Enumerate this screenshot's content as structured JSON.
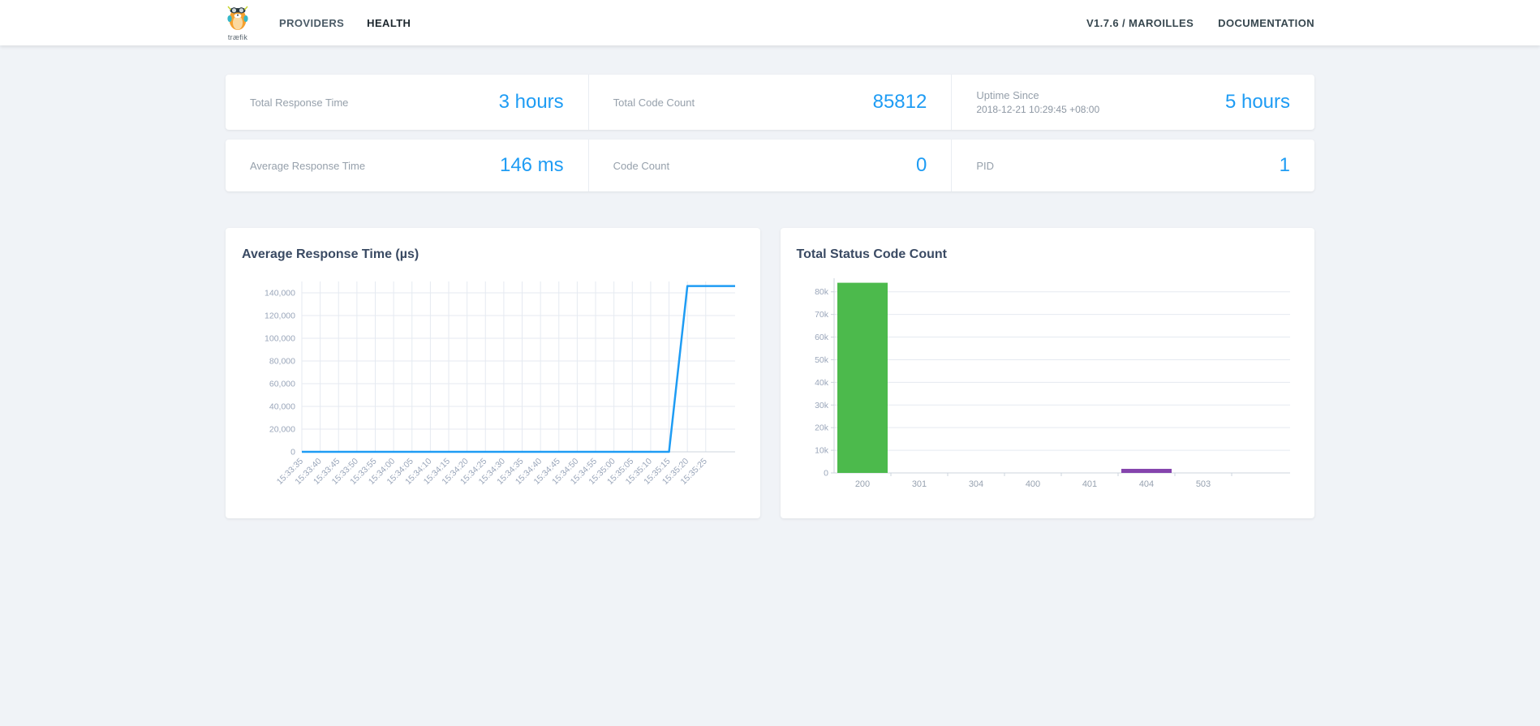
{
  "nav": {
    "logo_text": "træfik",
    "items": [
      {
        "label": "PROVIDERS",
        "active": false
      },
      {
        "label": "HEALTH",
        "active": true
      }
    ],
    "version": "V1.7.6 / MAROILLES",
    "documentation": "DOCUMENTATION"
  },
  "icons": {
    "logo": "traefik-gopher-logo"
  },
  "colors": {
    "accent_blue": "#1e9cf4",
    "line_blue": "#1e9cf4",
    "bar_green": "#4cba4c",
    "bar_purple": "#8544ad",
    "grid": "#e5eaf1"
  },
  "stats": {
    "row1": [
      {
        "label": "Total Response Time",
        "value": "3 hours"
      },
      {
        "label": "Total Code Count",
        "value": "85812"
      },
      {
        "label": "Uptime Since",
        "sublabel": "2018-12-21 10:29:45 +08:00",
        "value": "5 hours"
      }
    ],
    "row2": [
      {
        "label": "Average Response Time",
        "value": "146 ms"
      },
      {
        "label": "Code Count",
        "value": "0"
      },
      {
        "label": "PID",
        "value": "1"
      }
    ]
  },
  "chart_data": [
    {
      "type": "line",
      "title": "Average Response Time (µs)",
      "x": [
        "15:33:35",
        "15:33:40",
        "15:33:45",
        "15:33:50",
        "15:33:55",
        "15:34:00",
        "15:34:05",
        "15:34:10",
        "15:34:15",
        "15:34:20",
        "15:34:25",
        "15:34:30",
        "15:34:35",
        "15:34:40",
        "15:34:45",
        "15:34:50",
        "15:34:55",
        "15:35:00",
        "15:35:05",
        "15:35:10",
        "15:35:15",
        "15:35:20",
        "15:35:25"
      ],
      "series": [
        {
          "name": "average response time (µs)",
          "values": [
            0,
            0,
            0,
            0,
            0,
            0,
            0,
            0,
            0,
            0,
            0,
            0,
            0,
            0,
            0,
            0,
            0,
            0,
            0,
            0,
            0,
            146000,
            146000
          ]
        }
      ],
      "ylim": [
        0,
        150000
      ],
      "yticks": [
        {
          "value": 0,
          "label": "0"
        },
        {
          "value": 20000,
          "label": "20,000"
        },
        {
          "value": 40000,
          "label": "40,000"
        },
        {
          "value": 60000,
          "label": "60,000"
        },
        {
          "value": 80000,
          "label": "80,000"
        },
        {
          "value": 100000,
          "label": "100,000"
        },
        {
          "value": 120000,
          "label": "120,000"
        },
        {
          "value": 140000,
          "label": "140,000"
        }
      ],
      "line_color": "#1e9cf4",
      "grid": "both",
      "legend": "none"
    },
    {
      "type": "bar",
      "title": "Total Status Code Count",
      "categories": [
        "200",
        "301",
        "304",
        "400",
        "401",
        "404",
        "503"
      ],
      "values": [
        84000,
        0,
        0,
        0,
        0,
        1800,
        0
      ],
      "colors": [
        "#4cba4c",
        "#4cba4c",
        "#4cba4c",
        "#4cba4c",
        "#4cba4c",
        "#8544ad",
        "#4cba4c"
      ],
      "ylim": [
        0,
        86000
      ],
      "yticks": [
        {
          "value": 0,
          "label": "0"
        },
        {
          "value": 10000,
          "label": "10k"
        },
        {
          "value": 20000,
          "label": "20k"
        },
        {
          "value": 30000,
          "label": "30k"
        },
        {
          "value": 40000,
          "label": "40k"
        },
        {
          "value": 50000,
          "label": "50k"
        },
        {
          "value": 60000,
          "label": "60k"
        },
        {
          "value": 70000,
          "label": "70k"
        },
        {
          "value": 80000,
          "label": "80k"
        }
      ],
      "grid": "horizontal",
      "legend": "none"
    }
  ]
}
